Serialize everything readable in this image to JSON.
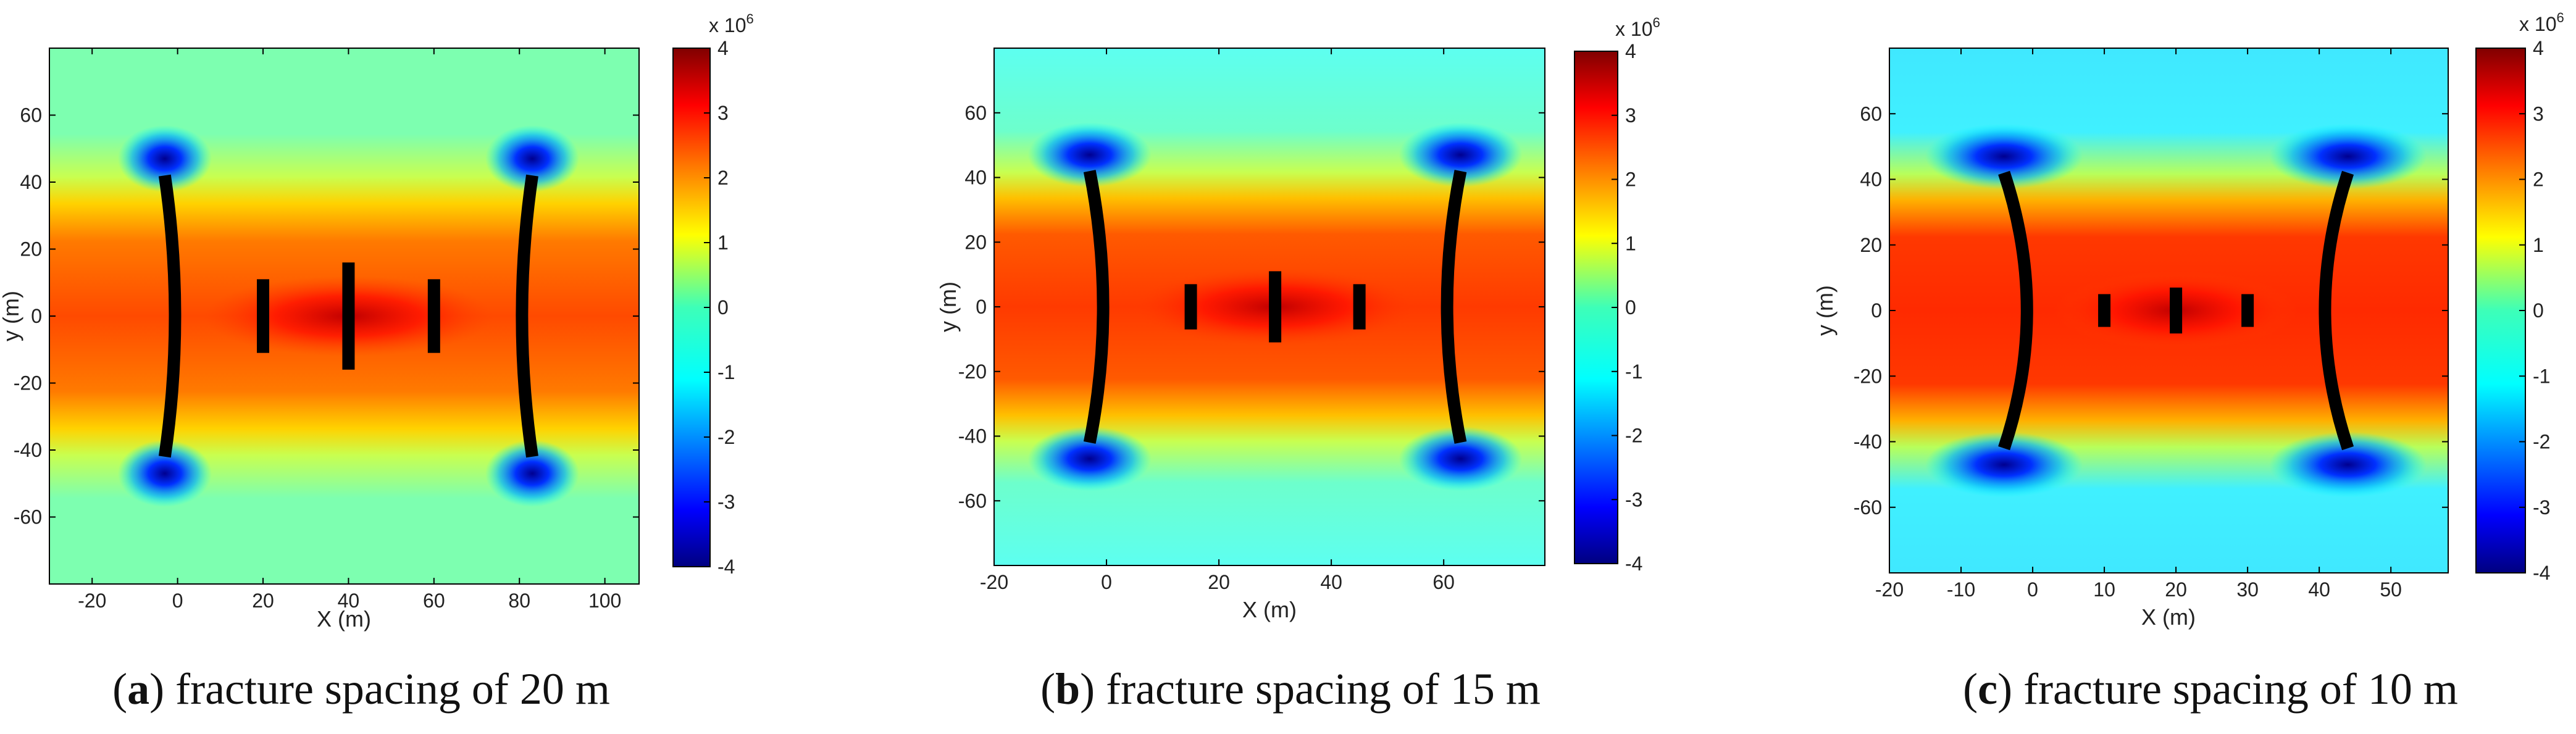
{
  "colorbar": {
    "min": -4,
    "max": 4,
    "ticks": [
      4,
      3,
      2,
      1,
      0,
      -1,
      -2,
      -3,
      -4
    ],
    "exponent_label_base": "x 10",
    "exponent_label_power": "6",
    "colormap": "jet"
  },
  "chart_data": [
    {
      "type": "heatmap",
      "caption_letter": "a",
      "caption_text": "fracture spacing of 20 m",
      "xlabel": "X (m)",
      "ylabel": "y (m)",
      "xlim": [
        -30,
        108
      ],
      "ylim": [
        -80,
        80
      ],
      "xticks": [
        -20,
        0,
        20,
        40,
        60,
        80,
        100
      ],
      "yticks": [
        60,
        40,
        20,
        0,
        -20,
        -40,
        -60
      ],
      "outer_fractures": [
        {
          "x_tip": -3,
          "x_mid": 0,
          "half_length": 42
        },
        {
          "x_tip": 83,
          "x_mid": 80,
          "half_length": 42
        }
      ],
      "inner_fractures": [
        {
          "x": 20,
          "half_length": 11
        },
        {
          "x": 40,
          "half_length": 16
        },
        {
          "x": 60,
          "half_length": 11
        }
      ]
    },
    {
      "type": "heatmap",
      "caption_letter": "b",
      "caption_text": "fracture spacing of 15 m",
      "xlabel": "X (m)",
      "ylabel": "y (m)",
      "xlim": [
        -20,
        78
      ],
      "ylim": [
        -80,
        80
      ],
      "xticks": [
        -20,
        0,
        20,
        40,
        60
      ],
      "yticks": [
        60,
        40,
        20,
        0,
        -20,
        -40,
        -60
      ],
      "outer_fractures": [
        {
          "x_tip": -3,
          "x_mid": 0,
          "half_length": 42
        },
        {
          "x_tip": 63,
          "x_mid": 60,
          "half_length": 42
        }
      ],
      "inner_fractures": [
        {
          "x": 15,
          "half_length": 7
        },
        {
          "x": 30,
          "half_length": 11
        },
        {
          "x": 45,
          "half_length": 7
        }
      ]
    },
    {
      "type": "heatmap",
      "caption_letter": "c",
      "caption_text": "fracture spacing of 10 m",
      "xlabel": "X (m)",
      "ylabel": "y (m)",
      "xlim": [
        -20,
        58
      ],
      "ylim": [
        -80,
        80
      ],
      "xticks": [
        -20,
        -10,
        0,
        10,
        20,
        30,
        40,
        50
      ],
      "yticks": [
        60,
        40,
        20,
        0,
        -20,
        -40,
        -60
      ],
      "outer_fractures": [
        {
          "x_tip": -4,
          "x_mid": 0,
          "half_length": 42
        },
        {
          "x_tip": 44,
          "x_mid": 40,
          "half_length": 42
        }
      ],
      "inner_fractures": [
        {
          "x": 10,
          "half_length": 5
        },
        {
          "x": 20,
          "half_length": 7
        },
        {
          "x": 30,
          "half_length": 5
        }
      ]
    }
  ]
}
